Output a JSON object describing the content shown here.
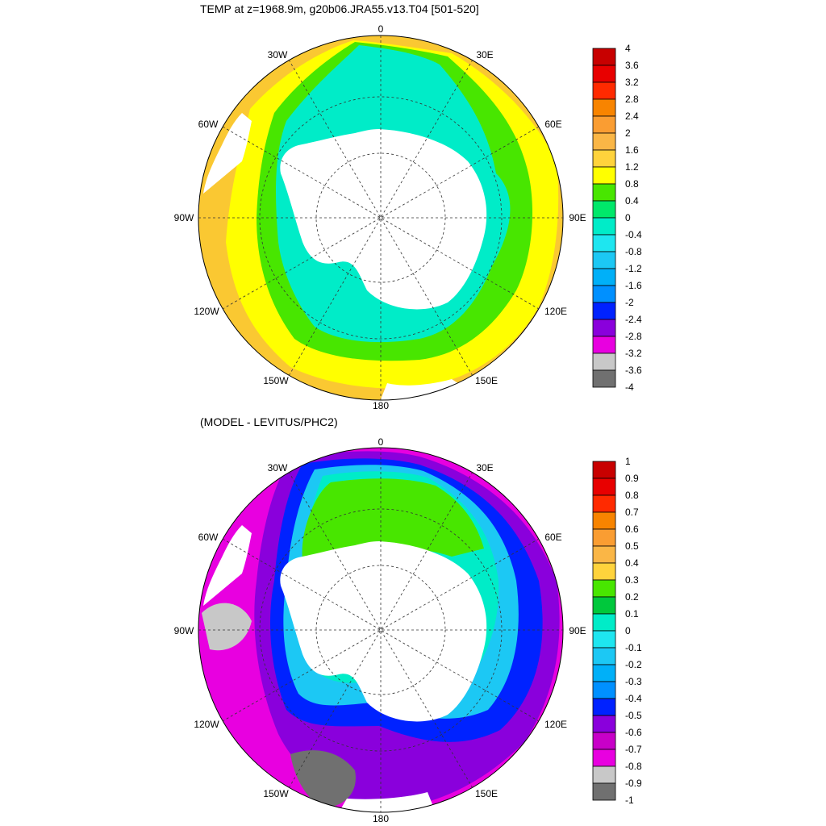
{
  "top_panel": {
    "title": "TEMP at z=1968.9m, g20b06.JRA55.v13.T04 [501-520]",
    "lon_labels": [
      "0",
      "30E",
      "60E",
      "90E",
      "120E",
      "150E",
      "180",
      "150W",
      "120W",
      "90W",
      "60W",
      "30W"
    ],
    "colorbar": {
      "labels": [
        "4",
        "3.6",
        "3.2",
        "2.8",
        "2.4",
        "2",
        "1.6",
        "1.2",
        "0.8",
        "0.4",
        "0",
        "-0.4",
        "-0.8",
        "-1.2",
        "-1.6",
        "-2",
        "-2.4",
        "-2.8",
        "-3.2",
        "-3.6",
        "-4"
      ],
      "colors": [
        "#c80000",
        "#e80000",
        "#ff2a00",
        "#f88400",
        "#fa9d32",
        "#fab646",
        "#ffd33c",
        "#ffff00",
        "#48e600",
        "#00e86a",
        "#00ecc8",
        "#1ee6f0",
        "#1cc8f4",
        "#00b0f8",
        "#0090ff",
        "#0022ff",
        "#8a00dc",
        "#e800e0",
        "#c8c8c8",
        "#707070"
      ]
    },
    "map_fields": {
      "outer_ring": "#fac832",
      "yellow_band": "#ffff00",
      "green_band": "#48e600",
      "cyan_core": "#00ecc8",
      "land": "#ffffff"
    }
  },
  "bottom_panel": {
    "title": "(MODEL - LEVITUS/PHC2)",
    "lon_labels": [
      "0",
      "30E",
      "60E",
      "90E",
      "120E",
      "150E",
      "180",
      "150W",
      "120W",
      "90W",
      "60W",
      "30W"
    ],
    "colorbar": {
      "labels": [
        "1",
        "0.9",
        "0.8",
        "0.7",
        "0.6",
        "0.5",
        "0.4",
        "0.3",
        "0.2",
        "0.1",
        "0",
        "-0.1",
        "-0.2",
        "-0.3",
        "-0.4",
        "-0.5",
        "-0.6",
        "-0.7",
        "-0.8",
        "-0.9",
        "-1"
      ],
      "colors": [
        "#c80000",
        "#e80000",
        "#ff2a00",
        "#f88400",
        "#fa9d32",
        "#fab646",
        "#ffd33c",
        "#48e600",
        "#00c83c",
        "#00ecc8",
        "#1ee6f0",
        "#1cc8f4",
        "#00b0f8",
        "#0090ff",
        "#0022ff",
        "#8a00dc",
        "#c800c8",
        "#e800e0",
        "#c8c8c8",
        "#707070"
      ]
    },
    "map_fields": {
      "magenta_west": "#e800e0",
      "purple": "#8a00dc",
      "blue": "#0022ff",
      "light_blue": "#1cc8f4",
      "cyan": "#00ecc8",
      "green": "#48e600",
      "gray": "#c8c8c8",
      "dark_gray": "#707070",
      "land": "#ffffff"
    }
  }
}
